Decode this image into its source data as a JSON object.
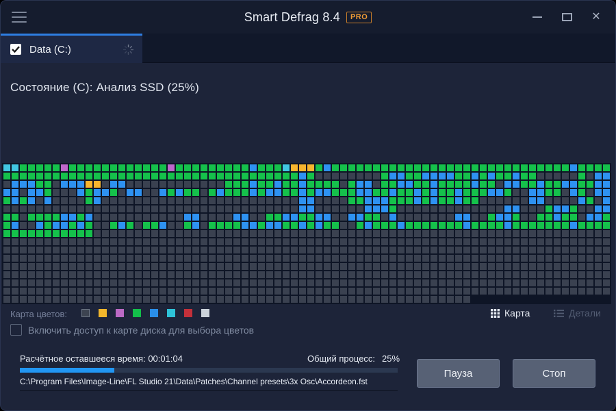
{
  "window": {
    "title": "Smart Defrag 8.4",
    "badge": "PRO"
  },
  "icons": {
    "close": "✕"
  },
  "tab": {
    "label": "Data (C:)",
    "checked": true
  },
  "status": "Состояние (C): Анализ SSD (25%)",
  "disk_map": {
    "cols": 74,
    "rows": 17,
    "palette": {
      "G": "#15c14b",
      "B": "#2e92f2",
      "D": "#3a4150",
      "C": "#41c7e3",
      "Y": "#f7b52e",
      "P": "#bf67cb"
    },
    "rows_data": [
      "CCGGGGGPGGGGGGGGGGGGPGGGGGGGGGBGGGCYYYGBGGGGGGGGGGGGGGGGGGGGGGGGGGGGGBGGGG",
      "GGGGGGGGGGGGGGGGGGGGGGGGGGGGGGGGGGGGBGDDDDDDDDGBBGGBBBBGGBGBGGBGGDDDDDGDBB",
      "DBBBGGDBBBYYDBBDDDDDDDDDDDDGGGBGGBGGBGGGGDGBBDGGBBGGBGGGGBGGDBBGGBGGBBGGBB",
      "BBDBBGDDDBGBBGDBBDDBGBGGDGBGGGBGBBGGBGBBGGGBBGGBGGBGBGGBGGGBBGDDBBGGDBGDBB",
      "GBGBDBDDDDGBDDDDDDDDDDDDDDDDDDDDDDDDBBDDDDGGBBBGGGBGBGGBGGDDDDDDBBDDDDBGDB",
      "DDDDDDDDDDDDDDDDDDDDDDDDDDDDDDDDDDDDBBDDDDDDBBBGDDDDDDDDDDDDDBBDDDGBBGDDBB",
      "GGDGGGGBBGBDDDDDDDDDDDBBDDDDBBDDGGBBGGBBDDBBGGDBDDDDDDDBBDDGBBGDDGGBGGDBBG",
      "GBDDBGBBGBGDDGBGDGGBDDGBDGGGGBBGBBGGBGBGGDDGBGGGBGGGGGGGBGGGGBGGGGGGGBGGGG",
      "GGGGGGGGGGGDDDDDDDDDDDDDDDDDDDDDDDDDDDDDDDDDDDDDDDDDDDDDDDDDDDDDDDDDDDDDD",
      "DDDDDDDDDDDDDDDDDDDDDDDDDDDDDDDDDDDDDDDDDDDDDDDDDDDDDDDDDDDDDDDDDDDDDDDD",
      "DDDDDDDDDDDDDDDDDDDDDDDDDDDDDDDDDDDDDDDDDDDDDDDDDDDDDDDDDDDDDDDDDDDDDDDD",
      "DDDDDDDDDDDDDDDDDDDDDDDDDDDDDDDDDDDDDDDDDDDDDDDDDDDDDDDDDDDDDDDDDDDDDDDD",
      "DDDDDDDDDDDDDDDDDDDDDDDDDDDDDDDDDDDDDDDDDDDDDDDDDDDDDDDDDDDDDDDDDDDDDDDD",
      "DDDDDDDDDDDDDDDDDDDDDDDDDDDDDDDDDDDDDDDDDDDDDDDDDDDDDDDDDDDDDDDDDDDDDDDD",
      "DDDDDDDDDDDDDDDDDDDDDDDDDDDDDDDDDDDDDDDDDDDDDDDDDDDDDDDDDDDDDDDDDDDDDDDD",
      "DDDDDDDDDDDDDDDDDDDDDDDDDDDDDDDDDDDDDDDDDDDDDDDDDDDDDDDDDDDDDDDDDDDDDDDD",
      "DDDDDDDDDDDDDDDDDDDDDDDDDDDDDDDDDDDDDDDDDDDDDDDDDDDDDDDDDDDDDDDDDDDDDDDD"
    ]
  },
  "legend": {
    "label": "Карта цветов:",
    "swatches": [
      {
        "name": "dark-gray",
        "color": "#3d4451"
      },
      {
        "name": "yellow",
        "color": "#f2b62c"
      },
      {
        "name": "purple",
        "color": "#bb69c4"
      },
      {
        "name": "green",
        "color": "#13bf4a"
      },
      {
        "name": "blue",
        "color": "#2a8ee9"
      },
      {
        "name": "cyan",
        "color": "#2ec2d8"
      },
      {
        "name": "red",
        "color": "#c3303a"
      },
      {
        "name": "white",
        "color": "#ccd3db"
      }
    ]
  },
  "view_toggle": {
    "map_label": "Карта",
    "details_label": "Детали"
  },
  "map_checkbox": {
    "label": "Включить доступ к карте диска для выбора цветов",
    "checked": false
  },
  "progress": {
    "time_label": "Расчётное оставшееся время:",
    "time_value": "00:01:04",
    "total_label": "Общий процесс:",
    "total_value": "25%",
    "percent": 25,
    "bar_color": "#2196f3"
  },
  "current_file": "C:\\Program Files\\Image-Line\\FL Studio 21\\Data\\Patches\\Channel presets\\3x Osc\\Accordeon.fst",
  "buttons": {
    "pause": "Пауза",
    "stop": "Стоп"
  }
}
